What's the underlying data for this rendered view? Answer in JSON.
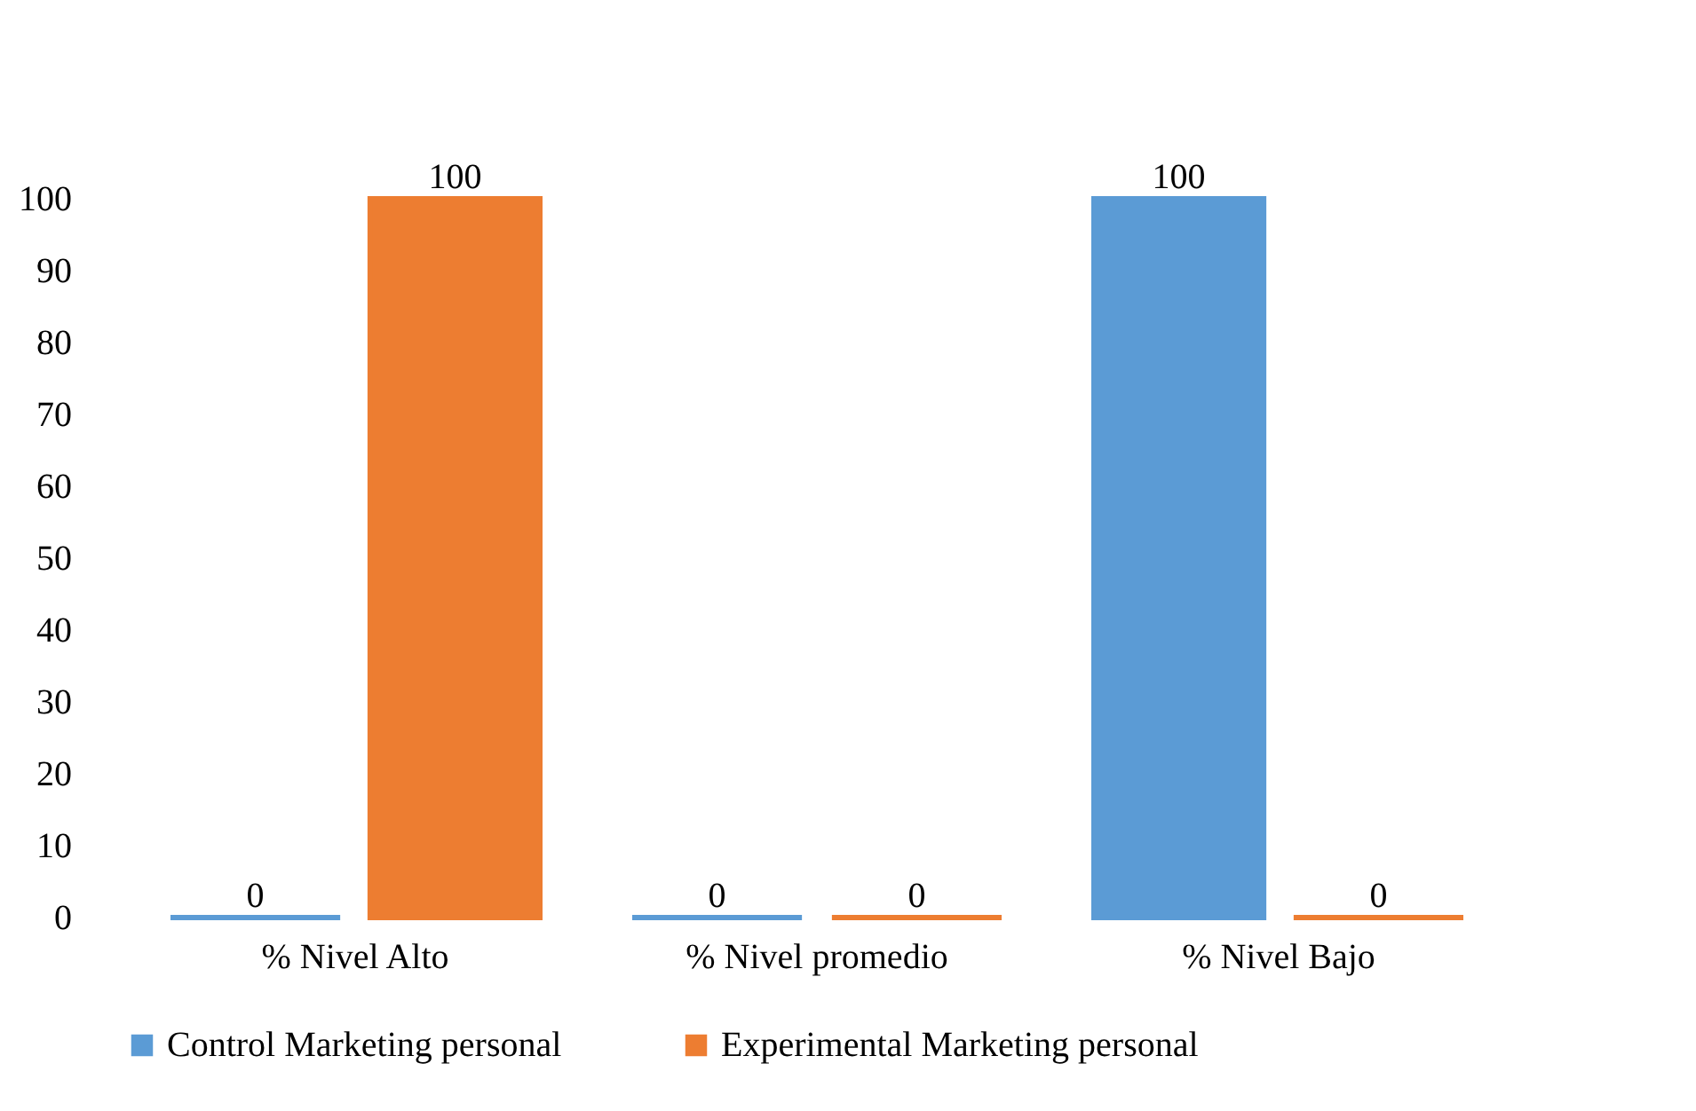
{
  "chart_data": {
    "type": "bar",
    "categories": [
      "% Nivel Alto",
      "% Nivel promedio",
      "% Nivel Bajo"
    ],
    "series": [
      {
        "name": "Control  Marketing personal",
        "color": "#5b9bd5",
        "values": [
          0,
          0,
          100
        ]
      },
      {
        "name": "Experimental  Marketing personal",
        "color": "#ed7d31",
        "values": [
          100,
          0,
          0
        ]
      }
    ],
    "ylim": [
      0,
      100
    ],
    "yticks": [
      0,
      10,
      20,
      30,
      40,
      50,
      60,
      70,
      80,
      90,
      100
    ],
    "data_labels": true,
    "legend": "bottom"
  }
}
